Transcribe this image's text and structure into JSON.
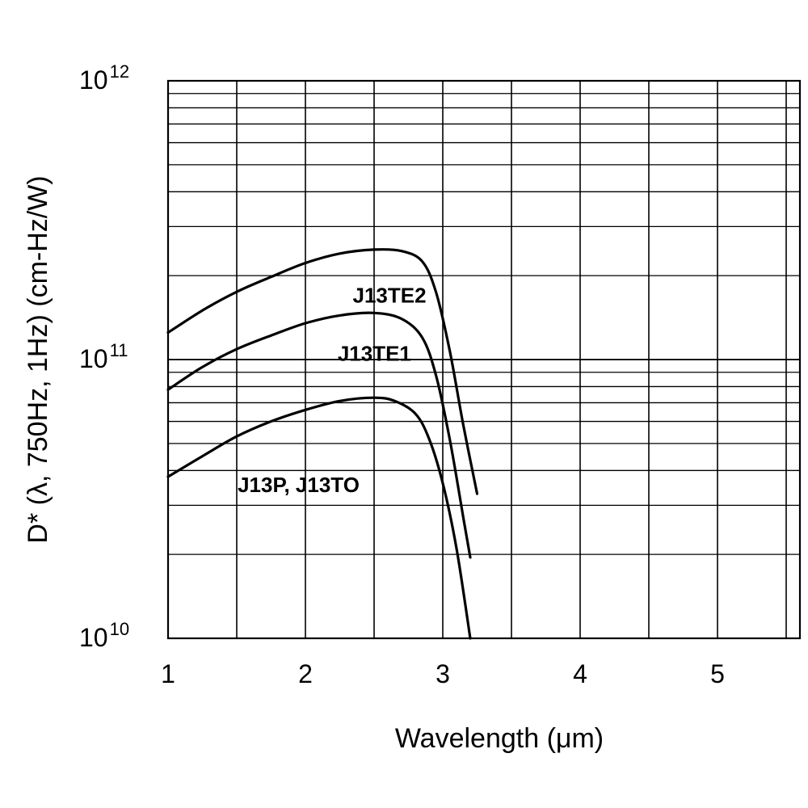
{
  "chart_data": {
    "type": "line",
    "title": "",
    "xlabel": "Wavelength (μm)",
    "ylabel": "D* (λ, 750Hz, 1Hz) (cm-Hz/W)",
    "xlim": [
      1,
      5.6
    ],
    "ylim": [
      10000000000,
      1000000000000
    ],
    "yscale": "log",
    "grid": true,
    "x_ticks": [
      "1",
      "2",
      "3",
      "4",
      "5"
    ],
    "y_ticks": [
      {
        "base": "10",
        "exp": "12"
      },
      {
        "base": "10",
        "exp": "11"
      },
      {
        "base": "10",
        "exp": "10"
      }
    ],
    "series": [
      {
        "name": "J13TE2",
        "x": [
          1.0,
          1.25,
          1.5,
          1.75,
          2.0,
          2.25,
          2.5,
          2.7,
          2.85,
          2.95,
          3.05,
          3.15,
          3.25
        ],
        "y": [
          125000000000,
          150000000000,
          175000000000,
          198000000000,
          222000000000,
          240000000000,
          248000000000,
          245000000000,
          225000000000,
          175000000000,
          108000000000,
          58000000000,
          33000000000
        ]
      },
      {
        "name": "J13TE1",
        "x": [
          1.0,
          1.25,
          1.5,
          1.75,
          2.0,
          2.25,
          2.5,
          2.7,
          2.85,
          2.95,
          3.05,
          3.15,
          3.2
        ],
        "y": [
          78000000000,
          94000000000,
          109000000000,
          122000000000,
          135000000000,
          144000000000,
          147000000000,
          140000000000,
          120000000000,
          88000000000,
          52000000000,
          27000000000,
          19500000000
        ]
      },
      {
        "name": "J13P, J13TO",
        "x": [
          1.0,
          1.25,
          1.5,
          1.75,
          2.0,
          2.25,
          2.5,
          2.65,
          2.8,
          2.9,
          3.0,
          3.1,
          3.2
        ],
        "y": [
          38000000000,
          45000000000,
          53000000000,
          60000000000,
          66000000000,
          71000000000,
          73000000000,
          71000000000,
          64000000000,
          52000000000,
          36000000000,
          21000000000,
          10000000000
        ]
      }
    ]
  }
}
